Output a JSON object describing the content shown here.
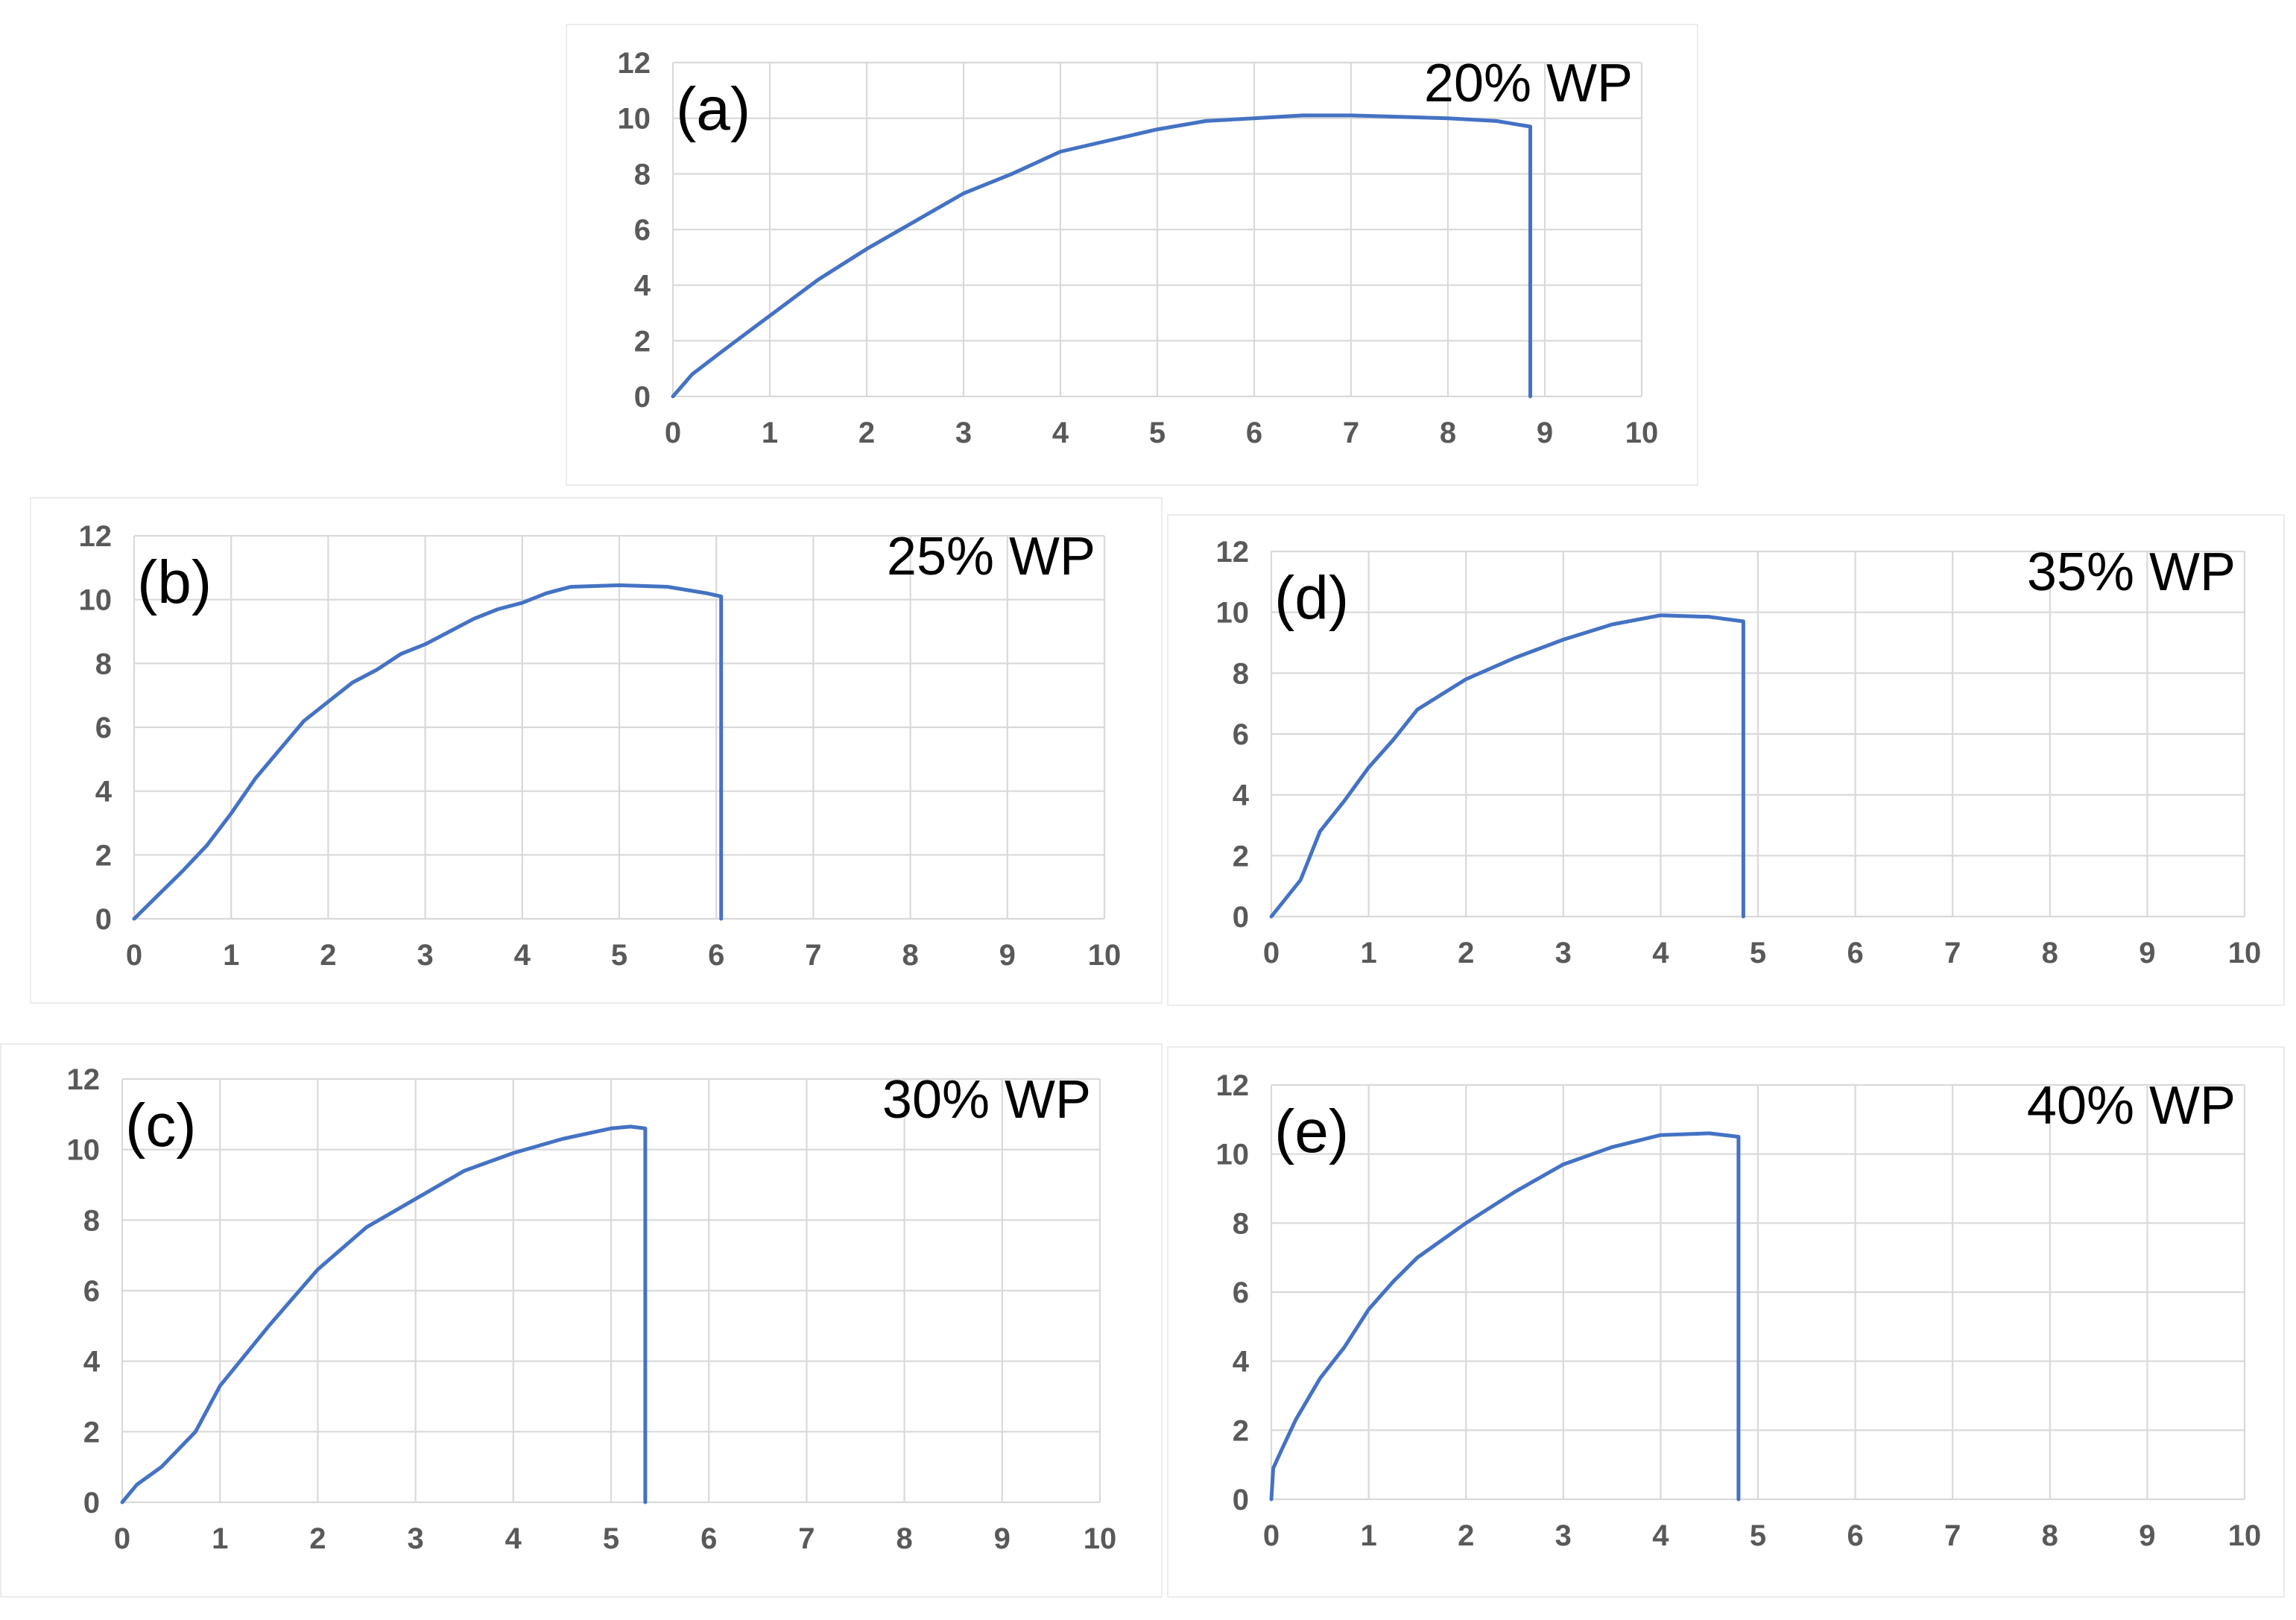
{
  "figure": {
    "series_color": "#4472C4",
    "grid_color": "#d9d9d9"
  },
  "chart_data": [
    {
      "type": "line",
      "panel_label": "(a)",
      "title": "20% WP",
      "xlabel": "",
      "ylabel": "",
      "xlim": [
        0,
        10
      ],
      "ylim": [
        0,
        12
      ],
      "x_ticks": [
        0,
        1,
        2,
        3,
        4,
        5,
        6,
        7,
        8,
        9,
        10
      ],
      "y_ticks": [
        0,
        2,
        4,
        6,
        8,
        10,
        12
      ],
      "grid": true,
      "x": [
        0,
        0.2,
        0.5,
        1,
        1.5,
        2,
        2.5,
        3,
        3.5,
        4,
        4.5,
        5,
        5.5,
        6,
        6.5,
        7,
        7.5,
        8,
        8.5,
        8.85,
        8.85
      ],
      "y": [
        0,
        0.8,
        1.6,
        2.9,
        4.2,
        5.3,
        6.3,
        7.3,
        8.0,
        8.8,
        9.2,
        9.6,
        9.9,
        10.0,
        10.1,
        10.1,
        10.05,
        10.0,
        9.9,
        9.7,
        0
      ]
    },
    {
      "type": "line",
      "panel_label": "(b)",
      "title": "25% WP",
      "xlabel": "",
      "ylabel": "",
      "xlim": [
        0,
        10
      ],
      "ylim": [
        0,
        12
      ],
      "x_ticks": [
        0,
        1,
        2,
        3,
        4,
        5,
        6,
        7,
        8,
        9,
        10
      ],
      "y_ticks": [
        0,
        2,
        4,
        6,
        8,
        10,
        12
      ],
      "grid": true,
      "x": [
        0,
        0.2,
        0.5,
        0.75,
        1,
        1.25,
        1.5,
        1.75,
        2,
        2.25,
        2.5,
        2.75,
        3,
        3.25,
        3.5,
        3.75,
        4,
        4.25,
        4.5,
        5,
        5.5,
        5.9,
        6.05,
        6.05
      ],
      "y": [
        0,
        0.6,
        1.5,
        2.3,
        3.3,
        4.4,
        5.3,
        6.2,
        6.8,
        7.4,
        7.8,
        8.3,
        8.6,
        9.0,
        9.4,
        9.7,
        9.9,
        10.2,
        10.4,
        10.45,
        10.4,
        10.2,
        10.1,
        0
      ]
    },
    {
      "type": "line",
      "panel_label": "(c)",
      "title": "30% WP",
      "xlabel": "",
      "ylabel": "",
      "xlim": [
        0,
        10
      ],
      "ylim": [
        0,
        12
      ],
      "x_ticks": [
        0,
        1,
        2,
        3,
        4,
        5,
        6,
        7,
        8,
        9,
        10
      ],
      "y_ticks": [
        0,
        2,
        4,
        6,
        8,
        10,
        12
      ],
      "grid": true,
      "x": [
        0,
        0.15,
        0.4,
        0.75,
        1,
        1.5,
        2,
        2.5,
        3,
        3.5,
        4,
        4.5,
        5,
        5.2,
        5.35,
        5.35
      ],
      "y": [
        0,
        0.5,
        1.0,
        2.0,
        3.3,
        5.0,
        6.6,
        7.8,
        8.6,
        9.4,
        9.9,
        10.3,
        10.6,
        10.65,
        10.6,
        0
      ]
    },
    {
      "type": "line",
      "panel_label": "(d)",
      "title": "35% WP",
      "xlabel": "",
      "ylabel": "",
      "xlim": [
        0,
        10
      ],
      "ylim": [
        0,
        12
      ],
      "x_ticks": [
        0,
        1,
        2,
        3,
        4,
        5,
        6,
        7,
        8,
        9,
        10
      ],
      "y_ticks": [
        0,
        2,
        4,
        6,
        8,
        10,
        12
      ],
      "grid": true,
      "x": [
        0,
        0.15,
        0.3,
        0.5,
        0.75,
        1,
        1.25,
        1.5,
        2,
        2.5,
        3,
        3.5,
        4,
        4.5,
        4.85,
        4.85
      ],
      "y": [
        0,
        0.6,
        1.2,
        2.8,
        3.8,
        4.9,
        5.8,
        6.8,
        7.8,
        8.5,
        9.1,
        9.6,
        9.9,
        9.85,
        9.7,
        0
      ]
    },
    {
      "type": "line",
      "panel_label": "(e)",
      "title": "40% WP",
      "xlabel": "",
      "ylabel": "",
      "xlim": [
        0,
        10
      ],
      "ylim": [
        0,
        12
      ],
      "x_ticks": [
        0,
        1,
        2,
        3,
        4,
        5,
        6,
        7,
        8,
        9,
        10
      ],
      "y_ticks": [
        0,
        2,
        4,
        6,
        8,
        10,
        12
      ],
      "grid": true,
      "x": [
        0,
        0.02,
        0.1,
        0.25,
        0.5,
        0.75,
        1,
        1.25,
        1.5,
        2,
        2.5,
        3,
        3.5,
        4,
        4.5,
        4.8,
        4.8
      ],
      "y": [
        0,
        0.9,
        1.4,
        2.3,
        3.5,
        4.4,
        5.5,
        6.3,
        7.0,
        8.0,
        8.9,
        9.7,
        10.2,
        10.55,
        10.6,
        10.5,
        0
      ]
    }
  ]
}
